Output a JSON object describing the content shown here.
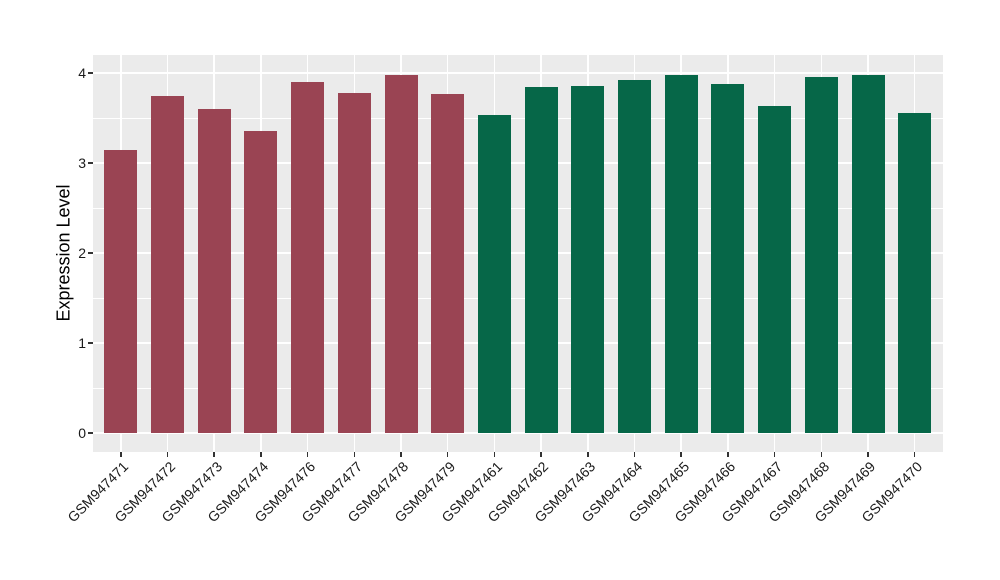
{
  "colors": {
    "group1_bar": "#9A4453",
    "group2_bar": "#066748",
    "panel_background": "#EBEBEB",
    "gridline": "#FFFFFF",
    "axis_text": "#1A1A1A",
    "axis_title": "#000000",
    "tick_mark": "#333333",
    "figure_background": "#FFFFFF"
  },
  "chart_data": {
    "type": "bar",
    "title": "",
    "xlabel": "",
    "ylabel": "Expression Level",
    "ylim": [
      0,
      4.2
    ],
    "yticks": [
      0,
      1,
      2,
      3,
      4
    ],
    "y_minor_gridlines": [
      0.5,
      1.5,
      2.5,
      3.5
    ],
    "grid": "on",
    "legend_position": "none",
    "panel_style": "ggplot-gray-panel-white-gridlines",
    "x_tick_label_rotation_deg": 45,
    "bars": [
      {
        "label": "GSM947471",
        "value": 3.15,
        "group": "group1"
      },
      {
        "label": "GSM947472",
        "value": 3.74,
        "group": "group1"
      },
      {
        "label": "GSM947473",
        "value": 3.6,
        "group": "group1"
      },
      {
        "label": "GSM947474",
        "value": 3.36,
        "group": "group1"
      },
      {
        "label": "GSM947476",
        "value": 3.9,
        "group": "group1"
      },
      {
        "label": "GSM947477",
        "value": 3.78,
        "group": "group1"
      },
      {
        "label": "GSM947478",
        "value": 3.98,
        "group": "group1"
      },
      {
        "label": "GSM947479",
        "value": 3.77,
        "group": "group1"
      },
      {
        "label": "GSM947461",
        "value": 3.53,
        "group": "group2"
      },
      {
        "label": "GSM947462",
        "value": 3.84,
        "group": "group2"
      },
      {
        "label": "GSM947463",
        "value": 3.86,
        "group": "group2"
      },
      {
        "label": "GSM947464",
        "value": 3.92,
        "group": "group2"
      },
      {
        "label": "GSM947465",
        "value": 3.98,
        "group": "group2"
      },
      {
        "label": "GSM947466",
        "value": 3.88,
        "group": "group2"
      },
      {
        "label": "GSM947467",
        "value": 3.63,
        "group": "group2"
      },
      {
        "label": "GSM947468",
        "value": 3.96,
        "group": "group2"
      },
      {
        "label": "GSM947469",
        "value": 3.98,
        "group": "group2"
      },
      {
        "label": "GSM947470",
        "value": 3.56,
        "group": "group2"
      }
    ],
    "group_colors": {
      "group1": "#9A4453",
      "group2": "#066748"
    }
  }
}
